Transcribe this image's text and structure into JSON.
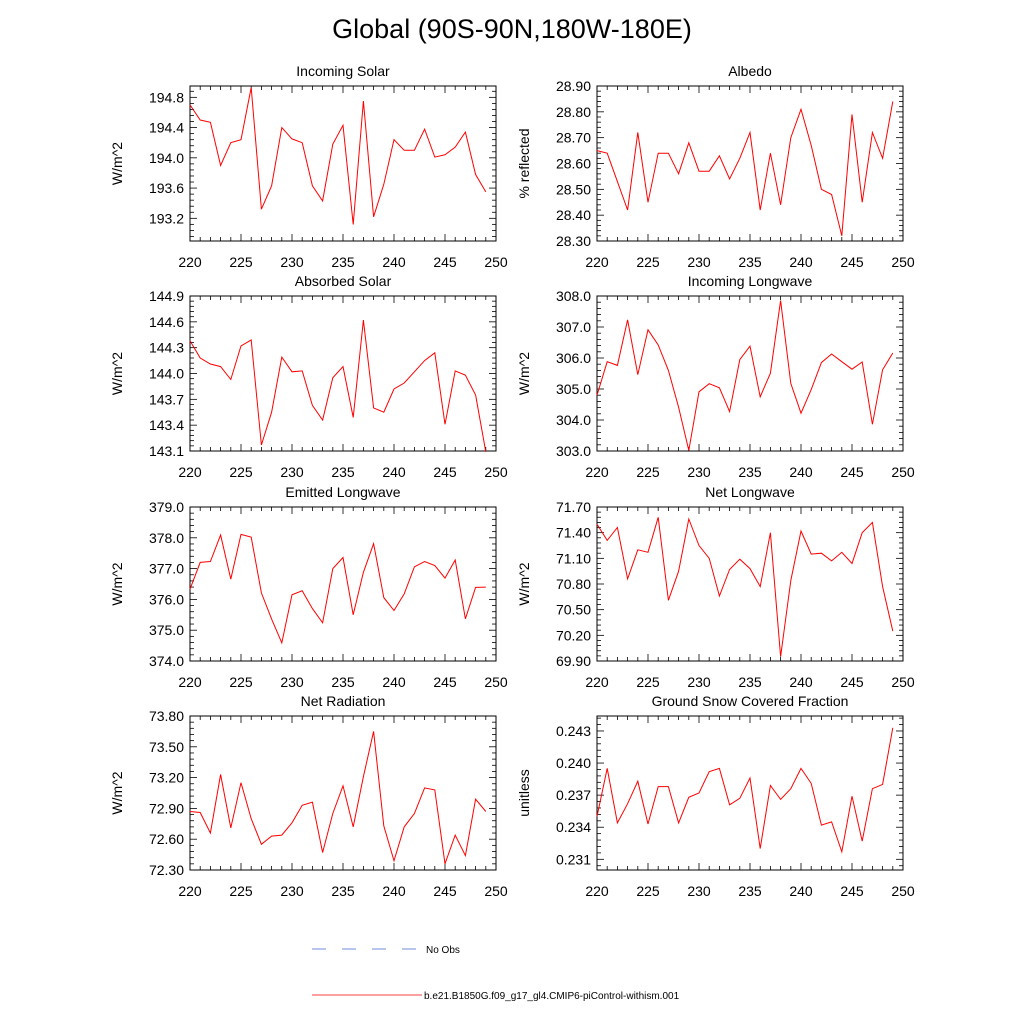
{
  "title": "Global (90S-90N,180W-180E)",
  "legend": {
    "obs_label": "No Obs",
    "obs_color": "#4466cc",
    "model_label": "b.e21.B1850G.f09_g17_gl4.CMIP6-piControl-withism.001",
    "model_color": "#ff0000"
  },
  "chart_data": [
    {
      "type": "line",
      "title": "Incoming Solar",
      "ylabel": "W/m^2",
      "xlim": [
        220,
        250
      ],
      "ylim": [
        192.9,
        194.95
      ],
      "xticks": [
        220,
        225,
        230,
        235,
        240,
        245,
        250
      ],
      "xtick_labels": [
        "220",
        "225",
        "230",
        "235",
        "240",
        "245",
        "250"
      ],
      "yticks": [
        193.2,
        193.6,
        194.0,
        194.4,
        194.8
      ],
      "ytick_labels": [
        "193.2",
        "193.6",
        "194.0",
        "194.4",
        "194.8"
      ],
      "x": [
        220,
        221,
        222,
        223,
        224,
        225,
        226,
        227,
        228,
        229,
        230,
        231,
        232,
        233,
        234,
        235,
        236,
        237,
        238,
        239,
        240,
        241,
        242,
        243,
        244,
        245,
        246,
        247,
        248,
        249
      ],
      "series": [
        {
          "name": "b.e21.B1850G.f09_g17_gl4.CMIP6-piControl-withism.001",
          "values": [
            194.7,
            194.5,
            194.47,
            193.9,
            194.2,
            194.24,
            194.93,
            193.32,
            193.63,
            194.4,
            194.25,
            194.2,
            193.63,
            193.43,
            194.18,
            194.43,
            193.12,
            194.75,
            193.22,
            193.65,
            194.24,
            194.1,
            194.1,
            194.38,
            194.01,
            194.04,
            194.14,
            194.34,
            193.78,
            193.55
          ]
        }
      ]
    },
    {
      "type": "line",
      "title": "Albedo",
      "ylabel": "% reflected",
      "xlim": [
        220,
        250
      ],
      "ylim": [
        28.3,
        28.9
      ],
      "xticks": [
        220,
        225,
        230,
        235,
        240,
        245,
        250
      ],
      "xtick_labels": [
        "220",
        "225",
        "230",
        "235",
        "240",
        "245",
        "250"
      ],
      "yticks": [
        28.3,
        28.4,
        28.5,
        28.6,
        28.7,
        28.8,
        28.9
      ],
      "ytick_labels": [
        "28.30",
        "28.40",
        "28.50",
        "28.60",
        "28.70",
        "28.80",
        "28.90"
      ],
      "x": [
        220,
        221,
        222,
        223,
        224,
        225,
        226,
        227,
        228,
        229,
        230,
        231,
        232,
        233,
        234,
        235,
        236,
        237,
        238,
        239,
        240,
        241,
        242,
        243,
        244,
        245,
        246,
        247,
        248,
        249
      ],
      "series": [
        {
          "name": "b.e21.B1850G.f09_g17_gl4.CMIP6-piControl-withism.001",
          "values": [
            28.65,
            28.64,
            28.53,
            28.42,
            28.72,
            28.45,
            28.64,
            28.64,
            28.56,
            28.68,
            28.57,
            28.57,
            28.63,
            28.54,
            28.62,
            28.72,
            28.42,
            28.64,
            28.44,
            28.7,
            28.81,
            28.67,
            28.5,
            28.48,
            28.32,
            28.79,
            28.45,
            28.72,
            28.62,
            28.84
          ]
        }
      ]
    },
    {
      "type": "line",
      "title": "Absorbed Solar",
      "ylabel": "W/m^2",
      "xlim": [
        220,
        250
      ],
      "ylim": [
        143.1,
        144.9
      ],
      "xticks": [
        220,
        225,
        230,
        235,
        240,
        245,
        250
      ],
      "xtick_labels": [
        "220",
        "225",
        "230",
        "235",
        "240",
        "245",
        "250"
      ],
      "yticks": [
        143.1,
        143.4,
        143.7,
        144.0,
        144.3,
        144.6,
        144.9
      ],
      "ytick_labels": [
        "143.1",
        "143.4",
        "143.7",
        "144.0",
        "144.3",
        "144.6",
        "144.9"
      ],
      "x": [
        220,
        221,
        222,
        223,
        224,
        225,
        226,
        227,
        228,
        229,
        230,
        231,
        232,
        233,
        234,
        235,
        236,
        237,
        238,
        239,
        240,
        241,
        242,
        243,
        244,
        245,
        246,
        247,
        248,
        249
      ],
      "series": [
        {
          "name": "b.e21.B1850G.f09_g17_gl4.CMIP6-piControl-withism.001",
          "values": [
            144.38,
            144.18,
            144.11,
            144.08,
            143.93,
            144.32,
            144.39,
            143.17,
            143.55,
            144.19,
            144.02,
            144.03,
            143.63,
            143.46,
            143.95,
            144.08,
            143.49,
            144.62,
            143.6,
            143.55,
            143.82,
            143.89,
            144.02,
            144.15,
            144.24,
            143.41,
            144.03,
            143.98,
            143.75,
            143.09
          ]
        }
      ]
    },
    {
      "type": "line",
      "title": "Incoming Longwave",
      "ylabel": "W/m^2",
      "xlim": [
        220,
        250
      ],
      "ylim": [
        303.0,
        308.0
      ],
      "xticks": [
        220,
        225,
        230,
        235,
        240,
        245,
        250
      ],
      "xtick_labels": [
        "220",
        "225",
        "230",
        "235",
        "240",
        "245",
        "250"
      ],
      "yticks": [
        303.0,
        304.0,
        305.0,
        306.0,
        307.0,
        308.0
      ],
      "ytick_labels": [
        "303.0",
        "304.0",
        "305.0",
        "306.0",
        "307.0",
        "308.0"
      ],
      "x": [
        220,
        221,
        222,
        223,
        224,
        225,
        226,
        227,
        228,
        229,
        230,
        231,
        232,
        233,
        234,
        235,
        236,
        237,
        238,
        239,
        240,
        241,
        242,
        243,
        244,
        245,
        246,
        247,
        248,
        249
      ],
      "series": [
        {
          "name": "b.e21.B1850G.f09_g17_gl4.CMIP6-piControl-withism.001",
          "values": [
            304.8,
            305.88,
            305.76,
            307.23,
            305.46,
            306.91,
            306.42,
            305.6,
            304.41,
            303.02,
            304.91,
            305.17,
            305.04,
            304.27,
            305.95,
            306.38,
            304.75,
            305.51,
            307.85,
            305.18,
            304.22,
            304.98,
            305.85,
            306.13,
            305.88,
            305.64,
            305.87,
            303.86,
            305.62,
            306.16
          ]
        }
      ]
    },
    {
      "type": "line",
      "title": "Emitted Longwave",
      "ylabel": "W/m^2",
      "xlim": [
        220,
        250
      ],
      "ylim": [
        374.0,
        379.0
      ],
      "xticks": [
        220,
        225,
        230,
        235,
        240,
        245,
        250
      ],
      "xtick_labels": [
        "220",
        "225",
        "230",
        "235",
        "240",
        "245",
        "250"
      ],
      "yticks": [
        374.0,
        375.0,
        376.0,
        377.0,
        378.0,
        379.0
      ],
      "ytick_labels": [
        "374.0",
        "375.0",
        "376.0",
        "377.0",
        "378.0",
        "379.0"
      ],
      "x": [
        220,
        221,
        222,
        223,
        224,
        225,
        226,
        227,
        228,
        229,
        230,
        231,
        232,
        233,
        234,
        235,
        236,
        237,
        238,
        239,
        240,
        241,
        242,
        243,
        244,
        245,
        246,
        247,
        248,
        249
      ],
      "series": [
        {
          "name": "b.e21.B1850G.f09_g17_gl4.CMIP6-piControl-withism.001",
          "values": [
            376.33,
            377.2,
            377.23,
            378.09,
            376.66,
            378.11,
            378.02,
            376.21,
            375.36,
            374.59,
            376.15,
            376.28,
            375.7,
            375.24,
            377.0,
            377.36,
            375.5,
            376.88,
            377.81,
            376.06,
            375.64,
            376.18,
            377.06,
            377.23,
            377.1,
            376.69,
            377.28,
            375.37,
            376.39,
            376.4
          ]
        }
      ]
    },
    {
      "type": "line",
      "title": "Net Longwave",
      "ylabel": "W/m^2",
      "xlim": [
        220,
        250
      ],
      "ylim": [
        69.9,
        71.7
      ],
      "xticks": [
        220,
        225,
        230,
        235,
        240,
        245,
        250
      ],
      "xtick_labels": [
        "220",
        "225",
        "230",
        "235",
        "240",
        "245",
        "250"
      ],
      "yticks": [
        69.9,
        70.2,
        70.5,
        70.8,
        71.1,
        71.4,
        71.7
      ],
      "ytick_labels": [
        "69.90",
        "70.20",
        "70.50",
        "70.80",
        "71.10",
        "71.40",
        "71.70"
      ],
      "x": [
        220,
        221,
        222,
        223,
        224,
        225,
        226,
        227,
        228,
        229,
        230,
        231,
        232,
        233,
        234,
        235,
        236,
        237,
        238,
        239,
        240,
        241,
        242,
        243,
        244,
        245,
        246,
        247,
        248,
        249
      ],
      "series": [
        {
          "name": "b.e21.B1850G.f09_g17_gl4.CMIP6-piControl-withism.001",
          "values": [
            71.5,
            71.31,
            71.46,
            70.86,
            71.2,
            71.17,
            71.58,
            70.61,
            70.95,
            71.56,
            71.25,
            71.1,
            70.66,
            70.97,
            71.09,
            70.98,
            70.77,
            71.4,
            69.95,
            70.84,
            71.42,
            71.15,
            71.16,
            71.07,
            71.17,
            71.04,
            71.4,
            71.52,
            70.77,
            70.25
          ]
        }
      ]
    },
    {
      "type": "line",
      "title": "Net Radiation",
      "ylabel": "W/m^2",
      "xlim": [
        220,
        250
      ],
      "ylim": [
        72.3,
        73.8
      ],
      "xticks": [
        220,
        225,
        230,
        235,
        240,
        245,
        250
      ],
      "xtick_labels": [
        "220",
        "225",
        "230",
        "235",
        "240",
        "245",
        "250"
      ],
      "yticks": [
        72.3,
        72.6,
        72.9,
        73.2,
        73.5,
        73.8
      ],
      "ytick_labels": [
        "72.30",
        "72.60",
        "72.90",
        "73.20",
        "73.50",
        "73.80"
      ],
      "x": [
        220,
        221,
        222,
        223,
        224,
        225,
        226,
        227,
        228,
        229,
        230,
        231,
        232,
        233,
        234,
        235,
        236,
        237,
        238,
        239,
        240,
        241,
        242,
        243,
        244,
        245,
        246,
        247,
        248,
        249
      ],
      "series": [
        {
          "name": "b.e21.B1850G.f09_g17_gl4.CMIP6-piControl-withism.001",
          "values": [
            72.87,
            72.86,
            72.66,
            73.23,
            72.71,
            73.15,
            72.8,
            72.55,
            72.63,
            72.64,
            72.76,
            72.93,
            72.96,
            72.47,
            72.85,
            73.12,
            72.72,
            73.21,
            73.65,
            72.73,
            72.39,
            72.72,
            72.85,
            73.1,
            73.08,
            72.36,
            72.64,
            72.44,
            72.99,
            72.87
          ]
        }
      ]
    },
    {
      "type": "line",
      "title": "Ground Snow Covered Fraction",
      "ylabel": "unitless",
      "xlim": [
        220,
        250
      ],
      "ylim": [
        0.23,
        0.2444
      ],
      "xticks": [
        220,
        225,
        230,
        235,
        240,
        245,
        250
      ],
      "xtick_labels": [
        "220",
        "225",
        "230",
        "235",
        "240",
        "245",
        "250"
      ],
      "yticks": [
        0.231,
        0.234,
        0.237,
        0.24,
        0.243
      ],
      "ytick_labels": [
        "0.231",
        "0.234",
        "0.237",
        "0.240",
        "0.243"
      ],
      "x": [
        220,
        221,
        222,
        223,
        224,
        225,
        226,
        227,
        228,
        229,
        230,
        231,
        232,
        233,
        234,
        235,
        236,
        237,
        238,
        239,
        240,
        241,
        242,
        243,
        244,
        245,
        246,
        247,
        248,
        249
      ],
      "series": [
        {
          "name": "b.e21.B1850G.f09_g17_gl4.CMIP6-piControl-withism.001",
          "values": [
            0.235,
            0.2395,
            0.2344,
            0.2362,
            0.2383,
            0.2343,
            0.2378,
            0.2378,
            0.2344,
            0.2368,
            0.2372,
            0.2392,
            0.2395,
            0.2361,
            0.2367,
            0.2386,
            0.232,
            0.2379,
            0.2366,
            0.2376,
            0.2395,
            0.2381,
            0.2342,
            0.2345,
            0.2317,
            0.2369,
            0.2327,
            0.2376,
            0.238,
            0.2433
          ]
        }
      ]
    }
  ]
}
